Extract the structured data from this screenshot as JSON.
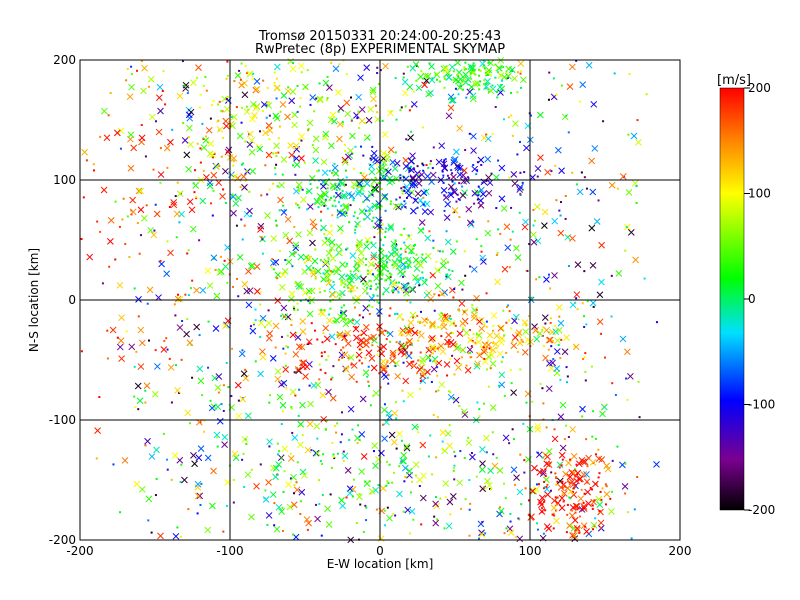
{
  "chart_data": {
    "type": "scatter",
    "title": "Tromsø 20150331 20:24:00-20:25:43",
    "subtitle": "RwPretec (8p) EXPERIMENTAL SKYMAP",
    "xlabel": "E-W location [km]",
    "ylabel": "N-S location [km]",
    "xlim": [
      -200,
      200
    ],
    "ylim": [
      -200,
      200
    ],
    "xticks": [
      "-200",
      "-100",
      "0",
      "100",
      "200"
    ],
    "yticks": [
      "-200",
      "-100",
      "0",
      "100",
      "200"
    ],
    "grid": true,
    "markers": [
      "cross",
      "dot"
    ],
    "colorbar": {
      "label": "[m/s]",
      "min": -200,
      "max": 200,
      "ticks": [
        "-200",
        "-100",
        "0",
        "100",
        "200"
      ],
      "colormap": "rainbow (black-purple-blue-cyan-green-yellow-red)"
    },
    "clusters": [
      {
        "x": 10,
        "y": 30,
        "spread": [
          20,
          15
        ],
        "velocity": 10
      },
      {
        "x": -20,
        "y": 90,
        "spread": [
          25,
          12
        ],
        "velocity": 15
      },
      {
        "x": 60,
        "y": 190,
        "spread": [
          20,
          10
        ],
        "velocity": 30
      },
      {
        "x": 0,
        "y": -40,
        "spread": [
          35,
          15
        ],
        "velocity": 185
      },
      {
        "x": 70,
        "y": -30,
        "spread": [
          30,
          15
        ],
        "velocity": 120
      },
      {
        "x": 125,
        "y": -160,
        "spread": [
          15,
          20
        ],
        "velocity": 195
      },
      {
        "x": -30,
        "y": 20,
        "spread": [
          20,
          20
        ],
        "velocity": 50
      },
      {
        "x": 40,
        "y": 100,
        "spread": [
          30,
          15
        ],
        "velocity": -110
      },
      {
        "x": -150,
        "y": 50,
        "spread": [
          40,
          80
        ],
        "velocity": 175
      },
      {
        "x": 0,
        "y": -130,
        "spread": [
          60,
          40
        ],
        "velocity": 40
      },
      {
        "x": -60,
        "y": 150,
        "spread": [
          40,
          30
        ],
        "velocity": 80
      }
    ]
  }
}
